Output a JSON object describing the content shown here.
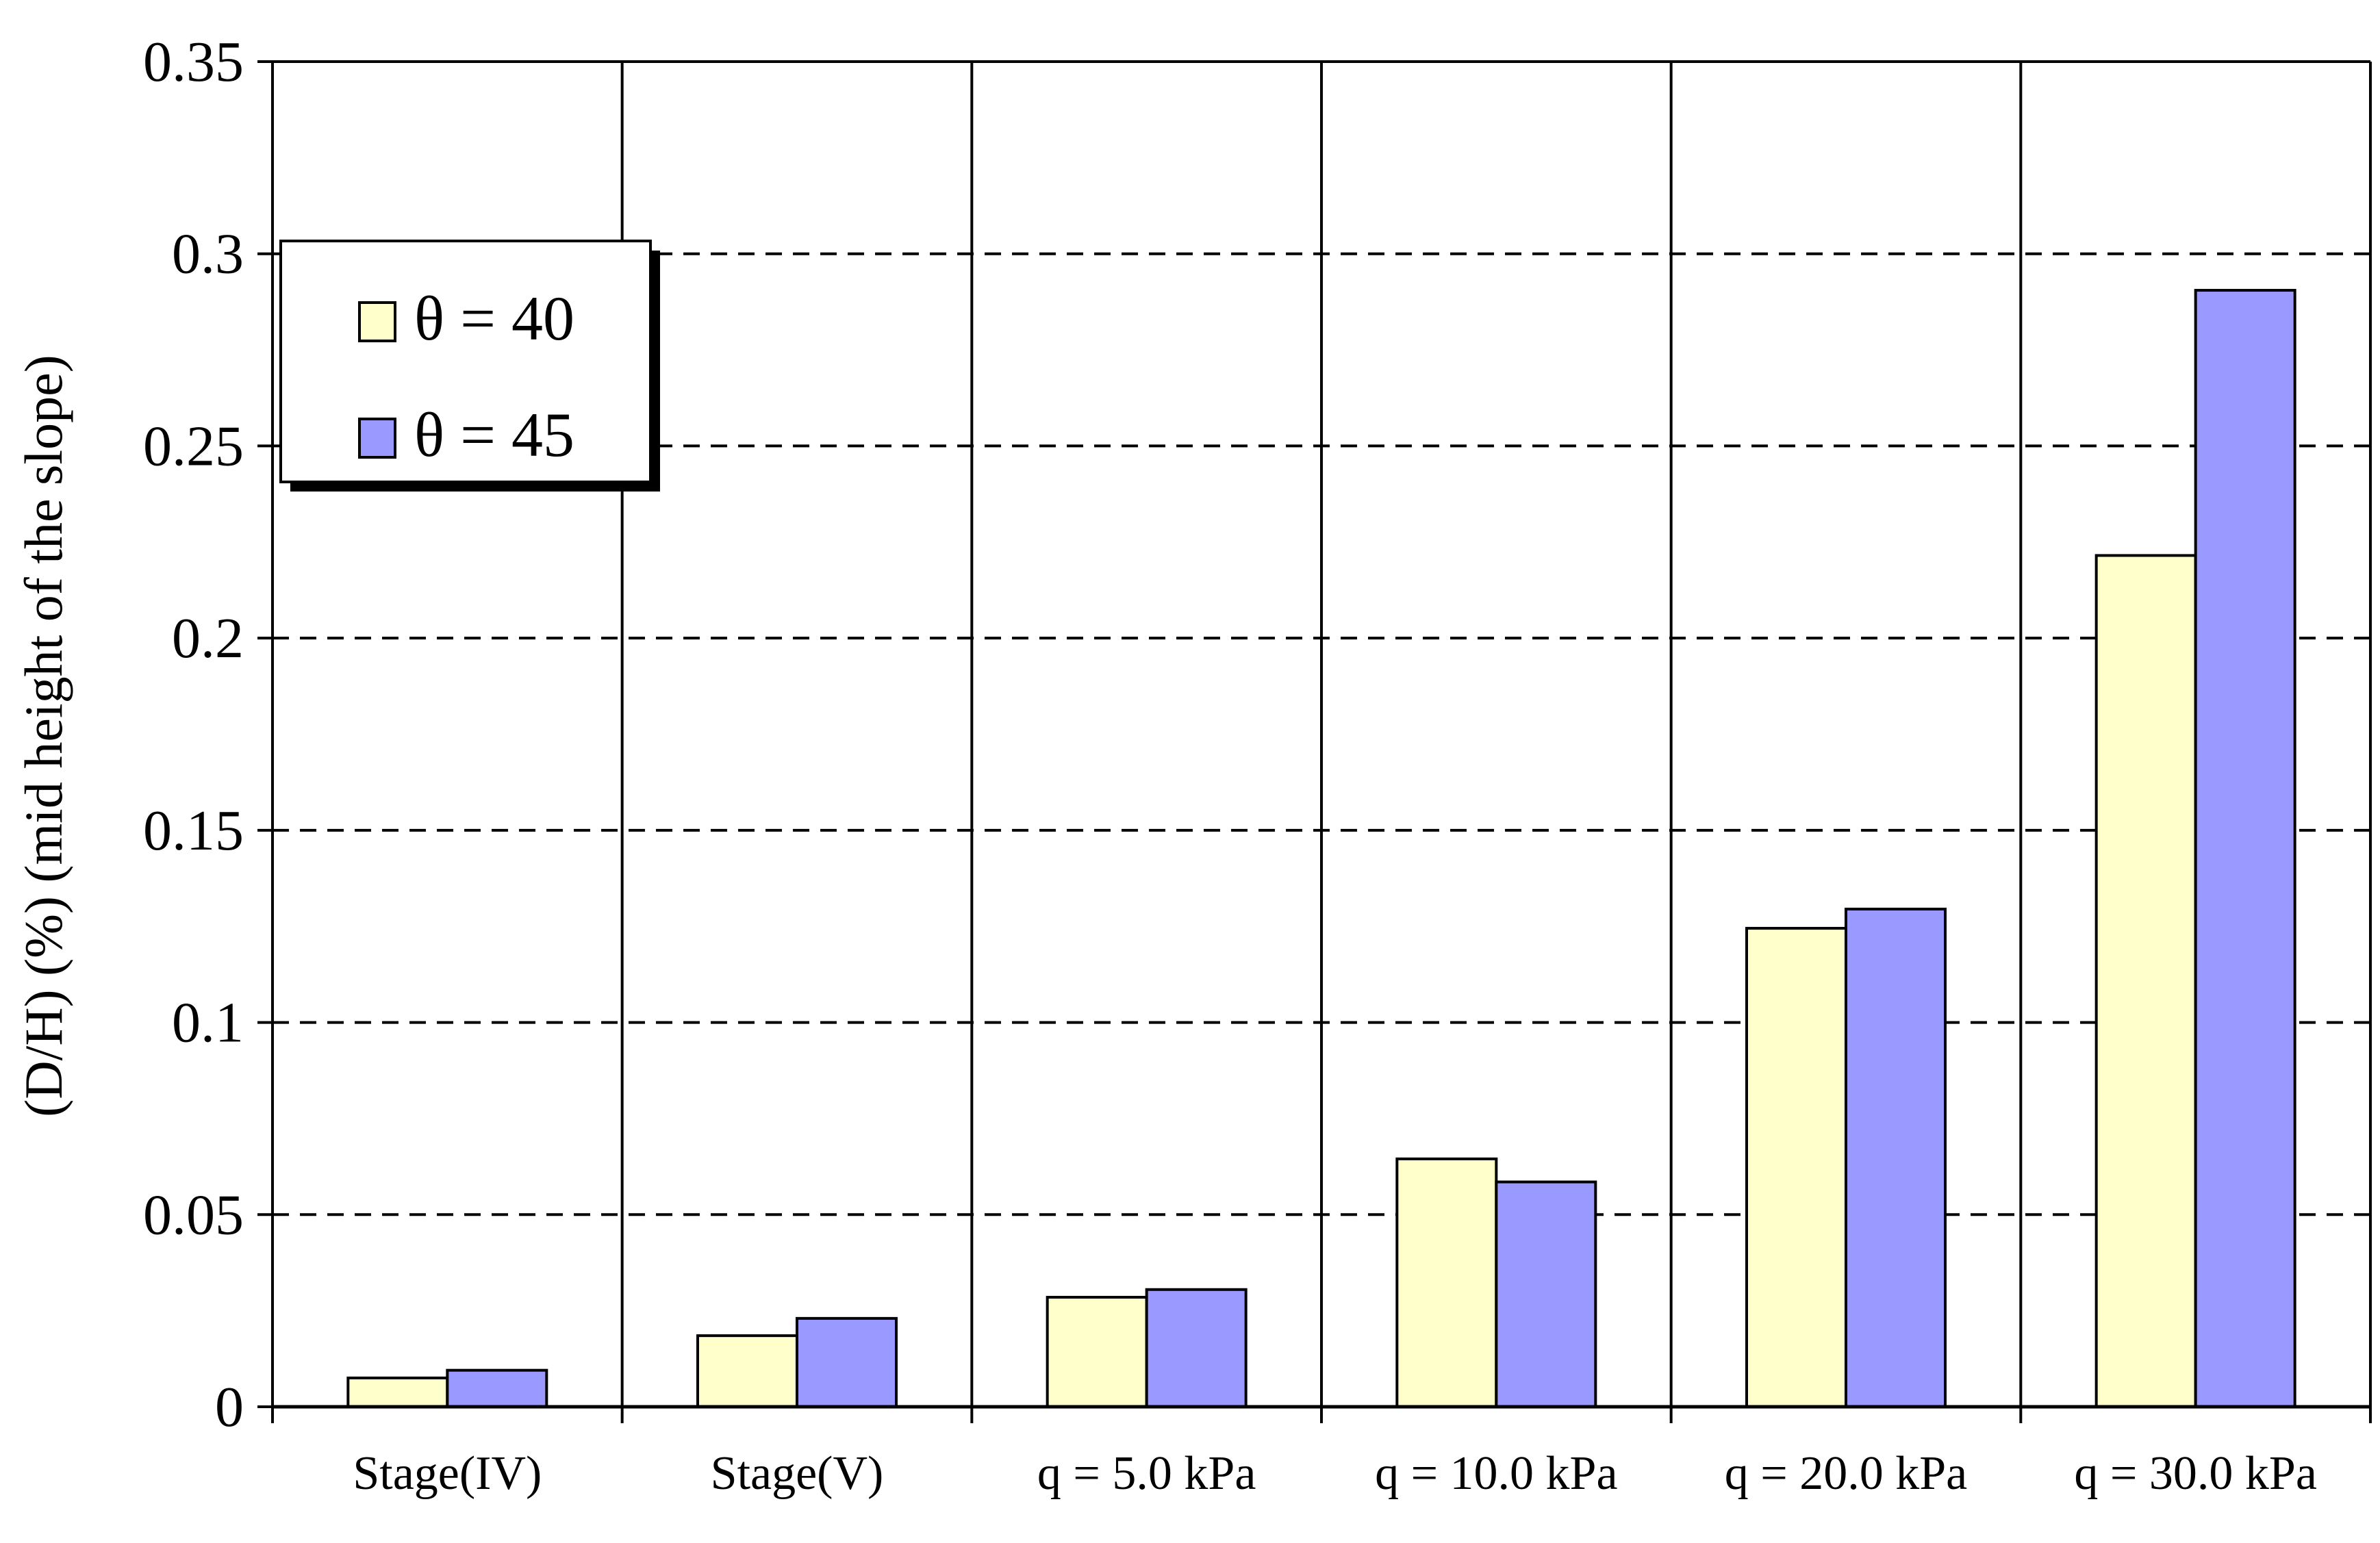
{
  "chart_data": {
    "type": "bar",
    "title": "",
    "xlabel": "",
    "ylabel": "(D/H) (%) (mid height of the slope)",
    "categories": [
      "Stage(IV)",
      "Stage(V)",
      "q = 5.0 kPa",
      "q = 10.0 kPa",
      "q = 20.0 kPa",
      "q = 30.0 kPa"
    ],
    "series": [
      {
        "name": "θ = 40",
        "color": "#ffffcc",
        "values": [
          0.0075,
          0.0185,
          0.0285,
          0.0645,
          0.1245,
          0.2215
        ]
      },
      {
        "name": "θ = 45",
        "color": "#9999ff",
        "values": [
          0.0095,
          0.023,
          0.0305,
          0.0585,
          0.1295,
          0.2905
        ]
      }
    ],
    "ylim": [
      0,
      0.35
    ],
    "yticks": [
      0,
      0.05,
      0.1,
      0.15,
      0.2,
      0.25,
      0.3,
      0.35
    ],
    "ytick_labels": [
      "0",
      "0.05",
      "0.1",
      "0.15",
      "0.2",
      "0.25",
      "0.3",
      "0.35"
    ],
    "grid": "horizontal-dashed",
    "legend_position": "top-left"
  }
}
